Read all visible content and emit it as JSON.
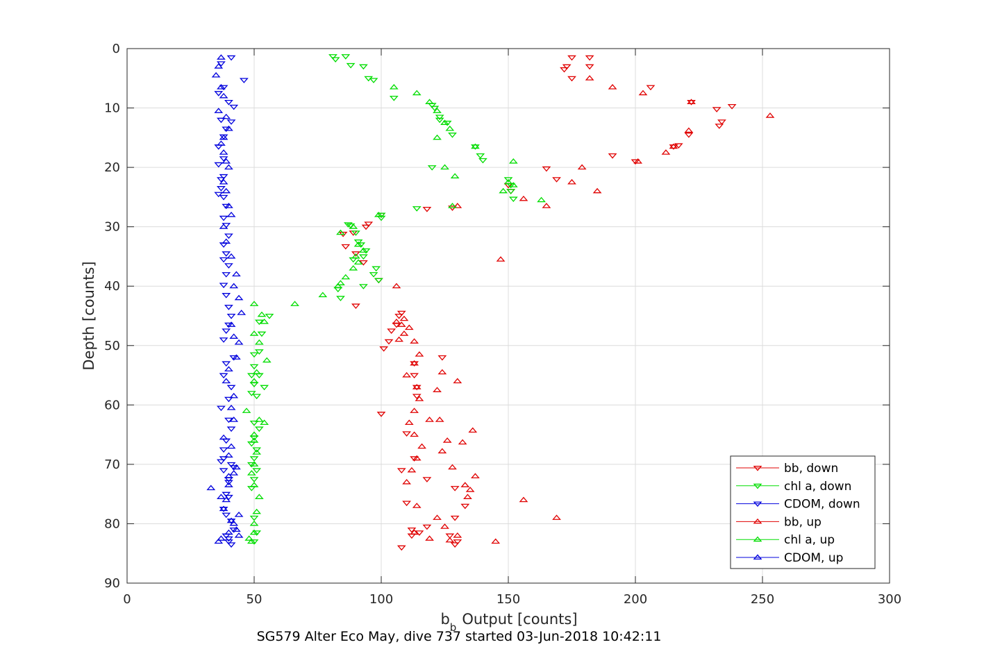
{
  "chart_data": {
    "type": "scatter",
    "title": "SG579 Alter Eco May, dive 737 started 03-Jun-2018 10:42:11",
    "xlabel_main": "b",
    "xlabel_sub": "b",
    "xlabel_rest": "Output [counts]",
    "ylabel": "Depth [counts]",
    "xlim": [
      0,
      300
    ],
    "ylim": [
      0,
      90
    ],
    "y_reversed": true,
    "grid": true,
    "legend_placement": "bottom-right",
    "x_ticks": [
      "0",
      "50",
      "100",
      "150",
      "200",
      "250",
      "300"
    ],
    "y_ticks": [
      "0",
      "10",
      "20",
      "30",
      "40",
      "50",
      "60",
      "70",
      "80",
      "90"
    ],
    "series": [
      {
        "name": "bb, down",
        "color": "#e00000",
        "marker": "triangle-down",
        "x": [
          175,
          182,
          173,
          172,
          175,
          182,
          206,
          222,
          238,
          232,
          234,
          233,
          221,
          217,
          215,
          191,
          200,
          165,
          169,
          150,
          151,
          128,
          118,
          100,
          95,
          94,
          89,
          85,
          86,
          90,
          93,
          99,
          90,
          108,
          107,
          106,
          104,
          103,
          101,
          113,
          113,
          114,
          114,
          100,
          110,
          113,
          108,
          124,
          118,
          129,
          110,
          133,
          129,
          118,
          112,
          115,
          112,
          127,
          130,
          129,
          108
        ],
        "y": [
          1.5,
          1.5,
          3.0,
          3.5,
          5.0,
          3.0,
          6.5,
          9.0,
          9.7,
          10.2,
          12.3,
          13.0,
          14.5,
          16.3,
          16.5,
          18.0,
          19.0,
          20.2,
          22.0,
          23.0,
          24.0,
          26.8,
          27.0,
          28.0,
          29.5,
          30.0,
          31.0,
          31.2,
          33.3,
          34.5,
          36.0,
          39.0,
          43.3,
          44.5,
          45.0,
          46.5,
          47.5,
          49.3,
          50.5,
          53.0,
          55.0,
          57.0,
          58.5,
          61.5,
          64.8,
          69.0,
          71.0,
          52.0,
          72.5,
          74.0,
          76.5,
          77.0,
          79.0,
          80.5,
          81.0,
          81.5,
          82.0,
          82.0,
          83.0,
          83.5,
          84.0
        ]
      },
      {
        "name": "chl a, down",
        "color": "#00dd00",
        "marker": "triangle-down",
        "x": [
          81,
          82,
          86,
          88,
          93,
          95,
          97,
          105,
          120,
          121,
          123,
          123,
          126,
          128,
          137,
          139,
          140,
          120,
          114,
          150,
          151,
          151,
          152,
          100,
          100,
          87,
          88,
          90,
          91,
          92,
          94,
          93,
          84,
          89,
          98,
          97,
          99,
          93,
          83,
          56,
          52,
          53,
          52,
          50,
          50,
          49,
          52,
          50,
          54,
          51,
          49,
          50,
          52,
          50,
          49,
          51,
          50,
          49,
          51,
          50,
          49,
          50,
          51,
          50
        ],
        "y": [
          1.3,
          1.8,
          1.3,
          2.8,
          3.0,
          5.0,
          5.3,
          8.3,
          9.5,
          10.0,
          11.5,
          12.0,
          12.5,
          14.5,
          16.5,
          18.0,
          18.8,
          20.0,
          26.9,
          22.0,
          23.0,
          24.0,
          25.3,
          28.5,
          28.0,
          29.6,
          29.8,
          31.0,
          32.5,
          33.0,
          34.0,
          35.0,
          42.0,
          35.5,
          37.0,
          38.0,
          39.0,
          40.0,
          40.5,
          45.0,
          46.0,
          48.0,
          51.0,
          51.5,
          53.5,
          55.0,
          55.0,
          56.5,
          57.0,
          58.5,
          58.0,
          63.0,
          64.0,
          65.5,
          66.5,
          67.5,
          69.0,
          70.0,
          71.0,
          72.5,
          74.0,
          79.0,
          81.5,
          83.0
        ]
      },
      {
        "name": "CDOM, down",
        "color": "#0000dd",
        "marker": "triangle-down",
        "x": [
          41,
          37,
          46,
          38,
          36,
          40,
          42,
          41,
          37,
          39,
          38,
          36,
          38,
          36,
          38,
          37,
          37,
          36,
          38,
          39,
          38,
          39,
          40,
          38,
          39,
          38,
          40,
          39,
          38,
          39,
          40,
          41,
          40,
          39,
          38,
          42,
          39,
          38,
          41,
          40,
          37,
          40,
          41,
          39,
          38,
          37,
          38,
          40,
          40,
          38,
          39,
          41,
          42,
          39,
          40,
          40,
          41,
          39,
          40,
          42,
          41,
          38
        ],
        "y": [
          1.5,
          2.5,
          5.3,
          6.5,
          7.5,
          9.0,
          9.8,
          12.3,
          12.0,
          13.5,
          14.8,
          16.5,
          18.5,
          19.5,
          21.5,
          22.0,
          23.5,
          24.5,
          25.0,
          26.5,
          28.5,
          29.7,
          31.5,
          33.0,
          34.5,
          35.5,
          36.5,
          38.0,
          39.8,
          41.5,
          43.5,
          45.0,
          46.5,
          47.5,
          49.0,
          52.0,
          53.0,
          55.0,
          57.0,
          59.0,
          60.5,
          62.5,
          64.0,
          66.0,
          67.5,
          69.5,
          71.0,
          72.5,
          75.5,
          77.5,
          78.5,
          79.5,
          81.0,
          82.0,
          82.5,
          83.0,
          83.5,
          75.0,
          73.0,
          70.5,
          70.0,
          69.0
        ]
      },
      {
        "name": "bb, up",
        "color": "#e00000",
        "marker": "triangle-up",
        "x": [
          182,
          191,
          203,
          222,
          253,
          221,
          215,
          212,
          201,
          179,
          175,
          185,
          156,
          165,
          130,
          147,
          106,
          113,
          124,
          122,
          130,
          123,
          119,
          126,
          124,
          136,
          132,
          128,
          137,
          133,
          135,
          134,
          156,
          169,
          113,
          119,
          127,
          145,
          130,
          125,
          122,
          114,
          107,
          109,
          111,
          108,
          106,
          109,
          115,
          113,
          110,
          114,
          115,
          113,
          111,
          113,
          116,
          114,
          112,
          110
        ],
        "y": [
          5.0,
          6.5,
          7.5,
          9.0,
          11.3,
          13.8,
          16.5,
          17.5,
          19.0,
          20.0,
          22.5,
          24.0,
          25.3,
          26.5,
          26.5,
          35.5,
          40.0,
          49.3,
          54.5,
          57.5,
          56.0,
          62.5,
          62.5,
          66.0,
          67.8,
          64.3,
          66.3,
          70.5,
          72.0,
          73.5,
          74.3,
          75.5,
          76.0,
          79.0,
          81.5,
          82.5,
          82.8,
          83.0,
          82.0,
          80.5,
          79.0,
          77.0,
          49.0,
          48.0,
          47.0,
          46.5,
          46.0,
          45.5,
          51.5,
          53.0,
          55.0,
          57.0,
          59.0,
          61.0,
          63.0,
          65.0,
          67.0,
          69.0,
          71.0,
          73.0
        ]
      },
      {
        "name": "chl a, up",
        "color": "#00dd00",
        "marker": "triangle-up",
        "x": [
          105,
          114,
          119,
          122,
          125,
          127,
          122,
          137,
          152,
          129,
          125,
          150,
          148,
          163,
          152,
          128,
          99,
          84,
          89,
          91,
          90,
          84,
          77,
          66,
          83,
          86,
          89,
          91,
          93,
          50,
          53,
          54,
          50,
          52,
          55,
          51,
          50,
          47,
          52,
          50,
          54,
          50,
          51,
          50,
          49,
          50,
          52,
          51,
          50,
          50,
          48,
          49
        ],
        "y": [
          6.5,
          7.5,
          9.0,
          10.5,
          12.5,
          13.5,
          15.0,
          16.5,
          19.0,
          21.5,
          20.0,
          22.5,
          24.0,
          25.5,
          23.0,
          26.5,
          28.0,
          31.0,
          30.0,
          33.0,
          35.0,
          39.5,
          41.5,
          43.0,
          40.0,
          38.5,
          37.0,
          36.0,
          34.0,
          43.0,
          44.8,
          46.0,
          48.0,
          49.5,
          52.5,
          54.5,
          56.0,
          61.0,
          62.5,
          65.0,
          63.0,
          66.0,
          68.0,
          70.0,
          71.5,
          73.5,
          75.5,
          78.0,
          80.0,
          81.5,
          82.5,
          83.0
        ]
      },
      {
        "name": "CDOM, up",
        "color": "#0000dd",
        "marker": "triangle-up",
        "x": [
          37,
          36,
          35,
          37,
          38,
          36,
          39,
          40,
          38,
          37,
          38,
          39,
          40,
          38,
          39,
          40,
          41,
          38,
          39,
          41,
          43,
          42,
          44,
          45,
          41,
          42,
          44,
          43,
          40,
          39,
          42,
          41,
          42,
          33,
          40,
          37,
          38,
          41,
          43,
          44,
          36,
          37,
          40,
          42,
          44,
          39,
          40,
          42,
          43,
          40,
          41,
          38
        ],
        "y": [
          1.5,
          3.0,
          4.5,
          6.5,
          8.0,
          10.5,
          11.5,
          13.5,
          15.0,
          16.0,
          17.5,
          19.0,
          20.0,
          22.5,
          24.0,
          26.5,
          28.0,
          30.0,
          32.5,
          35.0,
          38.0,
          40.0,
          42.0,
          44.5,
          46.5,
          48.5,
          49.5,
          52.0,
          54.0,
          56.0,
          58.5,
          60.5,
          62.5,
          74.0,
          72.0,
          75.5,
          77.5,
          79.5,
          81.0,
          82.0,
          83.0,
          82.5,
          81.5,
          80.0,
          78.5,
          76.0,
          73.5,
          71.5,
          70.5,
          68.5,
          67.0,
          65.5
        ]
      }
    ]
  }
}
